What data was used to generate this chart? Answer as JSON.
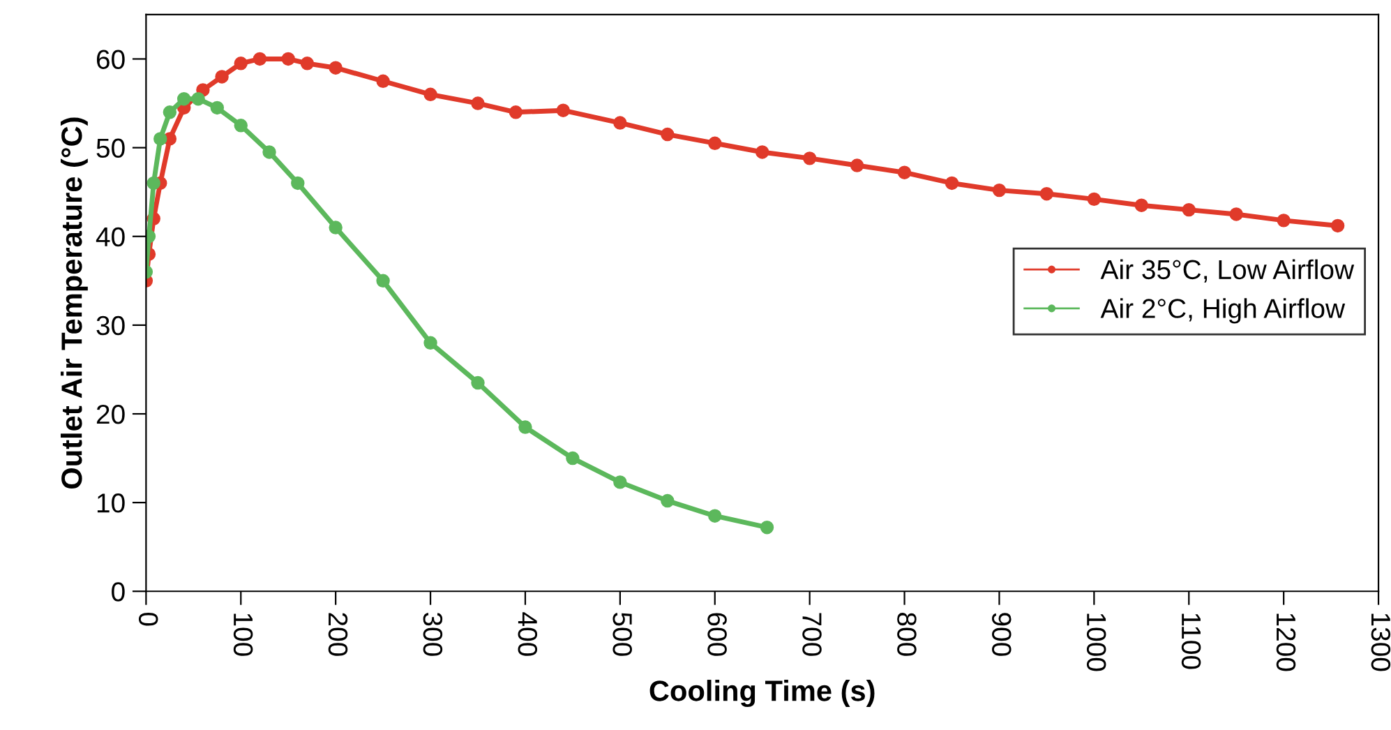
{
  "chart_data": {
    "type": "line",
    "xlabel": "Cooling Time (s)",
    "ylabel": "Outlet Air Temperature (°C)",
    "xlim": [
      0,
      1300
    ],
    "xticks": [
      0,
      100,
      200,
      300,
      400,
      500,
      600,
      700,
      800,
      900,
      1000,
      1100,
      1200,
      1300
    ],
    "ylim": [
      0,
      65
    ],
    "yticks": [
      0,
      10,
      20,
      30,
      40,
      50,
      60
    ],
    "grid": false,
    "legend": "right",
    "marker": "circle",
    "line_style": "solid",
    "series": [
      {
        "name": "Air 35°C, Low Airflow",
        "color": "#e03a2a",
        "x": [
          0,
          3,
          8,
          15,
          25,
          40,
          60,
          80,
          100,
          120,
          150,
          170,
          200,
          250,
          300,
          350,
          390,
          440,
          500,
          550,
          600,
          650,
          700,
          750,
          800,
          850,
          900,
          950,
          1000,
          1050,
          1100,
          1150,
          1200,
          1257
        ],
        "values": [
          35,
          38,
          42,
          46,
          51,
          54.5,
          56.5,
          58,
          59.5,
          60,
          60,
          59.5,
          59,
          57.5,
          56,
          55,
          54,
          54.2,
          52.8,
          51.5,
          50.5,
          49.5,
          48.8,
          48,
          47.2,
          46,
          45.2,
          44.8,
          44.2,
          43.5,
          43,
          42.5,
          41.8,
          41.2
        ]
      },
      {
        "name": "Air 2°C, High Airflow",
        "color": "#5cb85c",
        "x": [
          0,
          3,
          8,
          15,
          25,
          40,
          55,
          75,
          100,
          130,
          160,
          200,
          250,
          300,
          350,
          400,
          450,
          500,
          550,
          600,
          655
        ],
        "values": [
          36,
          40,
          46,
          51,
          54,
          55.5,
          55.5,
          54.5,
          52.5,
          49.5,
          46,
          41,
          35,
          28,
          23.5,
          18.5,
          15,
          12.3,
          10.2,
          8.5,
          7.2
        ]
      }
    ]
  }
}
